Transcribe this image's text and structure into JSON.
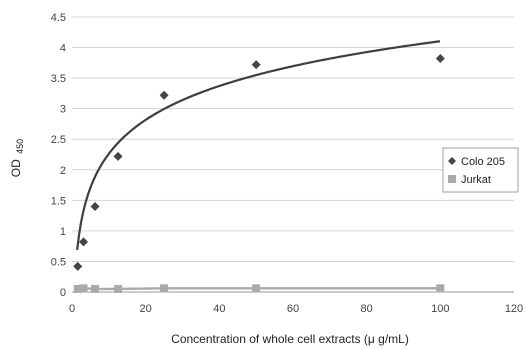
{
  "chart_data": {
    "type": "scatter",
    "xlabel": "Concentration of whole cell extracts (μ g/mL)",
    "ylabel_main": "OD",
    "ylabel_sub": "450",
    "xlim": [
      0,
      120
    ],
    "ylim": [
      0,
      4.5
    ],
    "x_ticks": [
      "0",
      "20",
      "40",
      "60",
      "80",
      "100",
      "120"
    ],
    "y_ticks": [
      "0",
      "0.5",
      "1",
      "1.5",
      "2",
      "2.5",
      "3",
      "3.5",
      "4",
      "4.5"
    ],
    "grid": "horizontal",
    "legend_position": "right",
    "series": [
      {
        "name": "Colo 205",
        "marker": "diamond",
        "color": "#444444",
        "x": [
          1.56,
          3.13,
          6.25,
          12.5,
          25,
          50,
          100
        ],
        "y": [
          0.42,
          0.82,
          1.4,
          2.22,
          3.22,
          3.72,
          3.82
        ],
        "trendline": {
          "type": "logarithmic",
          "a": 0.42,
          "b": 0.8
        }
      },
      {
        "name": "Jurkat",
        "marker": "square",
        "color": "#aaaaaa",
        "x": [
          1.56,
          3.13,
          6.25,
          12.5,
          25,
          50,
          100
        ],
        "y": [
          0.05,
          0.06,
          0.05,
          0.05,
          0.06,
          0.06,
          0.06
        ],
        "connect": true
      }
    ]
  }
}
